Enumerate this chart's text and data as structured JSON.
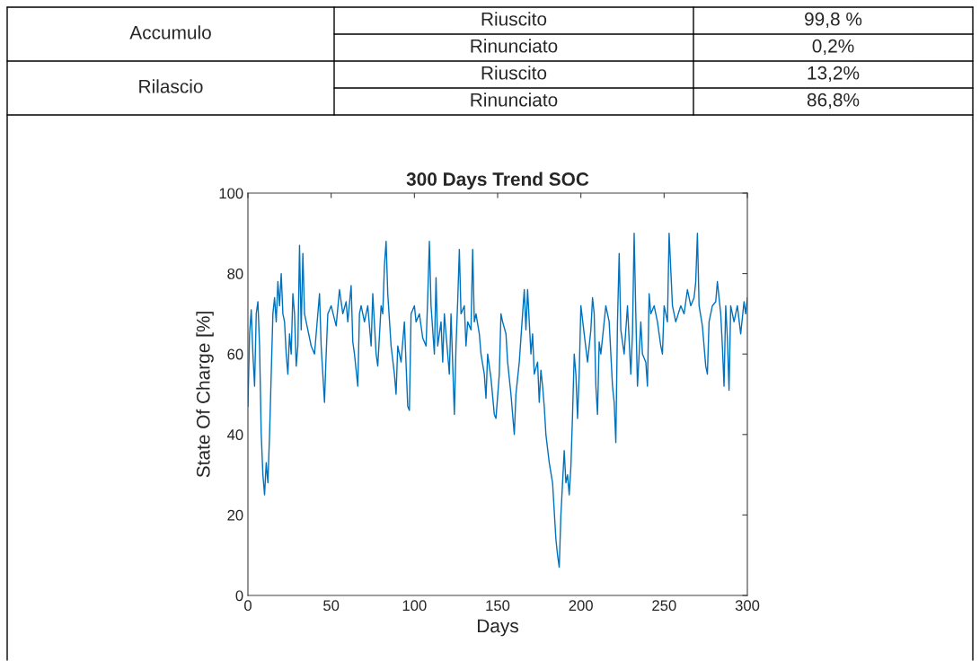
{
  "chart_data": [
    {
      "type": "other",
      "annotations": [
        "Accumulo",
        "Riuscito",
        "99,8 %",
        "Rinunciato",
        "0,2%",
        "Rilascio",
        "Riuscito",
        "13,2%",
        "Rinunciato",
        "86,8%"
      ]
    },
    {
      "type": "line",
      "title": "300 Days Trend SOC",
      "xlabel": "Days",
      "ylabel": "State Of Charge [%]",
      "xlim": [
        0,
        300
      ],
      "ylim": [
        0,
        100
      ],
      "xticks": [
        0,
        50,
        100,
        150,
        200,
        250,
        300
      ],
      "yticks": [
        0,
        20,
        40,
        60,
        80,
        100
      ],
      "grid": false,
      "legend": false,
      "series": [
        {
          "color": "#0072bd",
          "x": [
            0,
            1,
            2,
            3,
            4,
            5,
            6,
            7,
            8,
            9,
            10,
            11,
            12,
            13,
            14,
            15,
            16,
            17,
            18,
            19,
            20,
            21,
            22,
            23,
            24,
            25,
            26,
            27,
            28,
            29,
            30,
            31,
            32,
            33,
            34,
            35,
            38,
            40,
            41,
            43,
            44,
            45,
            46,
            47,
            48,
            50,
            53,
            55,
            57,
            59,
            60,
            62,
            63,
            64,
            65,
            66,
            67,
            68,
            70,
            72,
            74,
            75,
            77,
            78,
            80,
            81,
            82,
            83,
            84,
            86,
            88,
            89,
            90,
            92,
            94,
            96,
            97,
            98,
            100,
            101,
            103,
            105,
            107,
            108,
            109,
            110,
            112,
            113,
            114,
            116,
            117,
            118,
            120,
            121,
            122,
            124,
            125,
            126,
            127,
            128,
            130,
            131,
            132,
            134,
            135,
            136,
            137,
            139,
            140,
            142,
            143,
            144,
            146,
            148,
            149,
            151,
            152,
            153,
            155,
            156,
            158,
            160,
            161,
            163,
            165,
            166,
            167,
            168,
            170,
            171,
            172,
            174,
            175,
            176,
            177,
            178,
            179,
            181,
            183,
            185,
            186,
            187,
            188,
            189,
            190,
            191,
            192,
            193,
            194,
            195,
            196,
            197,
            198,
            199,
            200,
            202,
            204,
            206,
            207,
            208,
            209,
            210,
            211,
            212,
            214,
            215,
            217,
            219,
            220,
            221,
            222,
            223,
            224,
            226,
            228,
            230,
            231,
            232,
            233,
            234,
            236,
            237,
            239,
            240,
            241,
            242,
            244,
            246,
            248,
            249,
            250,
            252,
            253,
            255,
            257,
            260,
            262,
            264,
            266,
            268,
            269,
            270,
            271,
            273,
            275,
            276,
            277,
            279,
            281,
            282,
            284,
            285,
            286,
            287,
            288,
            289,
            290,
            292,
            294,
            296,
            298,
            299,
            300
          ],
          "values": [
            47,
            65,
            71,
            60,
            52,
            70,
            73,
            62,
            40,
            30,
            25,
            33,
            28,
            40,
            55,
            70,
            74,
            68,
            78,
            72,
            80,
            70,
            68,
            60,
            55,
            65,
            60,
            75,
            70,
            57,
            62,
            87,
            66,
            85,
            70,
            68,
            62,
            60,
            65,
            75,
            62,
            55,
            48,
            60,
            70,
            72,
            67,
            76,
            70,
            73,
            68,
            77,
            63,
            60,
            56,
            52,
            70,
            72,
            68,
            72,
            62,
            75,
            60,
            57,
            72,
            70,
            82,
            88,
            75,
            62,
            55,
            50,
            62,
            58,
            68,
            47,
            46,
            70,
            72,
            68,
            70,
            64,
            62,
            74,
            88,
            72,
            60,
            79,
            62,
            68,
            58,
            70,
            60,
            55,
            70,
            45,
            62,
            73,
            86,
            70,
            72,
            62,
            68,
            66,
            86,
            68,
            70,
            65,
            60,
            55,
            49,
            60,
            54,
            45,
            44,
            55,
            70,
            68,
            65,
            58,
            50,
            40,
            50,
            58,
            70,
            76,
            66,
            76,
            60,
            65,
            55,
            58,
            48,
            56,
            52,
            47,
            40,
            33,
            28,
            14,
            10,
            7,
            20,
            28,
            36,
            28,
            30,
            25,
            32,
            45,
            60,
            55,
            44,
            55,
            72,
            65,
            58,
            66,
            74,
            70,
            52,
            45,
            63,
            60,
            68,
            72,
            68,
            52,
            48,
            38,
            68,
            85,
            66,
            60,
            72,
            55,
            65,
            90,
            70,
            52,
            68,
            60,
            58,
            52,
            75,
            70,
            72,
            68,
            62,
            60,
            72,
            68,
            90,
            72,
            68,
            72,
            70,
            76,
            72,
            74,
            78,
            90,
            72,
            67,
            57,
            55,
            68,
            72,
            73,
            78,
            70,
            62,
            52,
            72,
            64,
            51,
            72,
            68,
            72,
            65,
            73,
            70,
            74
          ]
        }
      ]
    }
  ]
}
